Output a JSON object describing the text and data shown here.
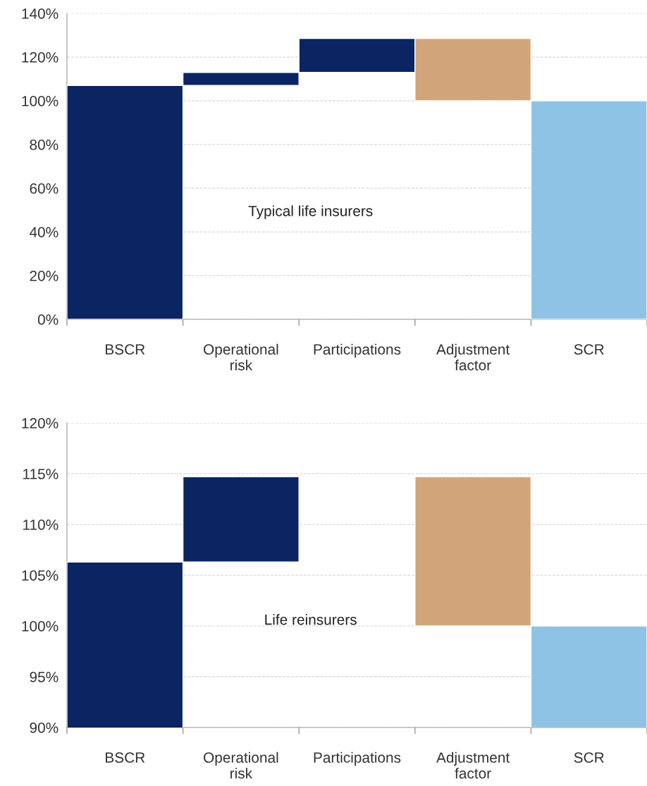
{
  "chart_data": [
    {
      "type": "bar",
      "categories": [
        "BSCR",
        "Operational\nrisk",
        "Participations",
        "Adjustment\nfactor",
        "SCR"
      ],
      "base": [
        0,
        107,
        113,
        128.5,
        0
      ],
      "values": [
        107,
        6,
        15.5,
        -28.5,
        100
      ],
      "colors": [
        "#0b2563",
        "#0b2563",
        "#0b2563",
        "#d1a47a",
        "#8ec3e6"
      ],
      "ylim": [
        0,
        140
      ],
      "yticks": [
        {
          "value": 0,
          "label": "0%"
        },
        {
          "value": 20,
          "label": "20%"
        },
        {
          "value": 40,
          "label": "40%"
        },
        {
          "value": 60,
          "label": "60%"
        },
        {
          "value": 80,
          "label": "80%"
        },
        {
          "value": 100,
          "label": "100%"
        },
        {
          "value": 120,
          "label": "120%"
        },
        {
          "value": 140,
          "label": "140%"
        }
      ],
      "grid": "y",
      "annotations": [
        "Typical life insurers"
      ]
    },
    {
      "type": "bar",
      "categories": [
        "BSCR",
        "Operational\nrisk",
        "Participations",
        "Adjustment\nfactor",
        "SCR"
      ],
      "base": [
        0,
        106.3,
        null,
        114.7,
        0
      ],
      "values": [
        106.3,
        8.4,
        null,
        -14.7,
        100
      ],
      "colors": [
        "#0b2563",
        "#0b2563",
        null,
        "#d1a47a",
        "#8ec3e6"
      ],
      "ylim": [
        90,
        120
      ],
      "yticks": [
        {
          "value": 90,
          "label": "90%"
        },
        {
          "value": 95,
          "label": "95%"
        },
        {
          "value": 100,
          "label": "100%"
        },
        {
          "value": 105,
          "label": "105%"
        },
        {
          "value": 110,
          "label": "110%"
        },
        {
          "value": 115,
          "label": "115%"
        },
        {
          "value": 120,
          "label": "120%"
        }
      ],
      "grid": "y",
      "annotations": [
        "Life reinsurers"
      ]
    }
  ]
}
